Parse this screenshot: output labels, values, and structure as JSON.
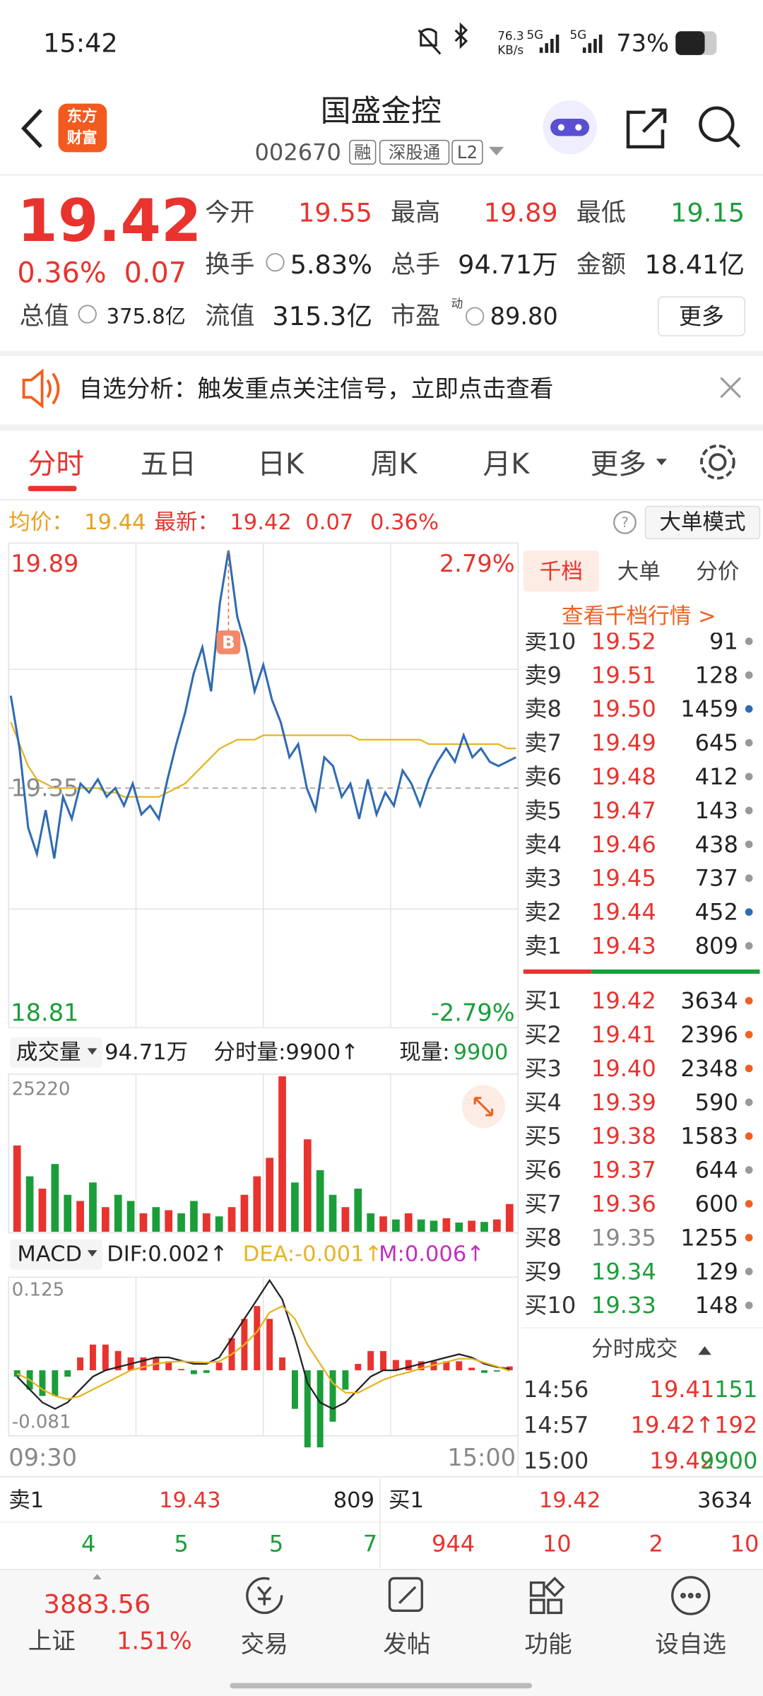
{
  "status_bar": {
    "time": "15:42",
    "net_speed": "76.3",
    "net_unit": "KB/s",
    "signal1": "5G",
    "signal2": "5G",
    "battery": "73%"
  },
  "header": {
    "logo": [
      "东方",
      "财富"
    ],
    "name": "国盛金控",
    "code": "002670",
    "tags": [
      "融",
      "深股通",
      "L2"
    ]
  },
  "quote": {
    "price": "19.42",
    "change_pct": "0.36%",
    "change": "0.07",
    "fields": [
      {
        "label": "今开",
        "value": "19.55"
      },
      {
        "label": "最高",
        "value": "19.89"
      },
      {
        "label": "最低",
        "value": "19.15"
      },
      {
        "label": "换手",
        "value": "5.83%"
      },
      {
        "label": "总手",
        "value": "94.71万"
      },
      {
        "label": "金额",
        "value": "18.41亿"
      },
      {
        "label": "总值",
        "value": "375.8亿"
      },
      {
        "label": "流值",
        "value": "315.3亿"
      },
      {
        "label": "市盈",
        "sup": "动",
        "value": "89.80"
      }
    ],
    "more": "更多"
  },
  "banner": "自选分析：触发重点关注信号，立即点击查看",
  "tabs": [
    "分时",
    "五日",
    "日K",
    "周K",
    "月K",
    "更多"
  ],
  "info_bar": {
    "avg_label": "均价：",
    "avg": "19.44",
    "last_label": "最新：",
    "last": "19.42",
    "change": "0.07",
    "change_pct": "0.36%",
    "mode": "大单模式"
  },
  "chart_data": [
    {
      "type": "line",
      "annotation": "B",
      "ylim": [
        18.81,
        19.89
      ],
      "yticks": [
        18.81,
        19.35,
        19.89
      ],
      "y2lim": [
        -2.79,
        2.79
      ],
      "y2ticks": [
        {
          "value": -2.79,
          "label": "-2.79%"
        },
        {
          "value": 2.79,
          "label": "2.79%"
        }
      ],
      "series": [
        {
          "name": "最新",
          "color": "#2f6bb3",
          "values": [
            19.56,
            19.44,
            19.26,
            19.2,
            19.3,
            19.19,
            19.33,
            19.28,
            19.36,
            19.34,
            19.37,
            19.33,
            19.35,
            19.31,
            19.36,
            19.29,
            19.31,
            19.28,
            19.37,
            19.45,
            19.52,
            19.61,
            19.67,
            19.57,
            19.77,
            19.89,
            19.74,
            19.67,
            19.57,
            19.63,
            19.55,
            19.5,
            19.42,
            19.45,
            19.35,
            19.3,
            19.42,
            19.4,
            19.33,
            19.36,
            19.28,
            19.37,
            19.29,
            19.34,
            19.31,
            19.39,
            19.36,
            19.31,
            19.37,
            19.41,
            19.44,
            19.41,
            19.47,
            19.42,
            19.44,
            19.41,
            19.4,
            19.41,
            19.42
          ]
        },
        {
          "name": "均价",
          "color": "#e6b422",
          "values": [
            19.5,
            19.45,
            19.4,
            19.37,
            19.36,
            19.35,
            19.35,
            19.35,
            19.35,
            19.35,
            19.35,
            19.34,
            19.34,
            19.33,
            19.33,
            19.33,
            19.33,
            19.33,
            19.34,
            19.35,
            19.36,
            19.38,
            19.4,
            19.42,
            19.44,
            19.45,
            19.46,
            19.46,
            19.46,
            19.47,
            19.47,
            19.47,
            19.47,
            19.47,
            19.47,
            19.47,
            19.47,
            19.47,
            19.47,
            19.47,
            19.46,
            19.46,
            19.46,
            19.46,
            19.46,
            19.46,
            19.46,
            19.46,
            19.45,
            19.45,
            19.45,
            19.45,
            19.45,
            19.45,
            19.45,
            19.45,
            19.45,
            19.44,
            19.44
          ]
        }
      ]
    },
    {
      "type": "bar",
      "label": "成交量",
      "total": "94.71万",
      "last_bar": "分时量:9900↑",
      "now_label": "现量:",
      "now": "9900",
      "ylim": [
        0,
        25220
      ],
      "yticks": [
        25220
      ],
      "values": [
        14000,
        9000,
        7000,
        11000,
        6000,
        5000,
        8000,
        4000,
        6000,
        5000,
        3000,
        4000,
        3500,
        3000,
        5000,
        3000,
        2500,
        4000,
        6000,
        9000,
        12000,
        25220,
        8000,
        15000,
        10000,
        6000,
        4000,
        7000,
        3000,
        2500,
        2000,
        3000,
        2000,
        1800,
        2200,
        1500,
        1800,
        1600,
        2000,
        4500
      ],
      "colors": [
        "#e8332e",
        "#1a9e3a",
        "#e8332e",
        "#1a9e3a",
        "#1a9e3a",
        "#e8332e",
        "#1a9e3a",
        "#e8332e",
        "#1a9e3a",
        "#1a9e3a",
        "#e8332e",
        "#1a9e3a",
        "#e8332e",
        "#1a9e3a",
        "#1a9e3a",
        "#e8332e",
        "#1a9e3a",
        "#e8332e",
        "#e8332e",
        "#e8332e",
        "#e8332e",
        "#e8332e",
        "#1a9e3a",
        "#e8332e",
        "#1a9e3a",
        "#1a9e3a",
        "#e8332e",
        "#1a9e3a",
        "#1a9e3a",
        "#e8332e",
        "#1a9e3a",
        "#e8332e",
        "#1a9e3a",
        "#1a9e3a",
        "#e8332e",
        "#1a9e3a",
        "#e8332e",
        "#1a9e3a",
        "#e8332e",
        "#e8332e"
      ]
    },
    {
      "type": "macd",
      "label": "MACD",
      "xlabels": [
        "09:30",
        "15:00"
      ],
      "ylim": [
        -0.102,
        0.145
      ],
      "yticks": [
        -0.081,
        0.125
      ],
      "up_color": "#e8332e",
      "down_color": "#1a9e3a",
      "series": [
        {
          "name": "DIF:0.002↑",
          "color": "#222222",
          "values": [
            -0.01,
            -0.03,
            -0.05,
            -0.06,
            -0.05,
            -0.03,
            -0.01,
            0.0,
            0.005,
            0.01,
            0.015,
            0.02,
            0.02,
            0.015,
            0.01,
            0.01,
            0.02,
            0.05,
            0.08,
            0.11,
            0.14,
            0.11,
            0.05,
            -0.02,
            -0.05,
            -0.06,
            -0.05,
            -0.03,
            -0.01,
            0.0,
            0.0,
            0.005,
            0.01,
            0.015,
            0.02,
            0.025,
            0.02,
            0.01,
            0.005,
            0.002
          ]
        },
        {
          "name": "DEA:-0.001↑",
          "color": "#e6b422",
          "values": [
            -0.005,
            -0.015,
            -0.03,
            -0.04,
            -0.045,
            -0.04,
            -0.03,
            -0.02,
            -0.01,
            0.0,
            0.005,
            0.01,
            0.013,
            0.014,
            0.013,
            0.012,
            0.014,
            0.025,
            0.04,
            0.06,
            0.09,
            0.1,
            0.08,
            0.04,
            0.01,
            -0.02,
            -0.035,
            -0.035,
            -0.025,
            -0.015,
            -0.008,
            -0.003,
            0.003,
            0.008,
            0.013,
            0.018,
            0.018,
            0.012,
            0.006,
            -0.001
          ]
        },
        {
          "name": "M:0.006↑",
          "color": "#c030c0",
          "values": [
            -0.01,
            -0.03,
            -0.04,
            -0.04,
            -0.01,
            0.02,
            0.04,
            0.04,
            0.03,
            0.02,
            0.02,
            0.02,
            0.014,
            0.002,
            -0.006,
            -0.004,
            0.012,
            0.05,
            0.08,
            0.1,
            0.08,
            0.02,
            -0.06,
            -0.12,
            -0.12,
            -0.08,
            -0.03,
            0.01,
            0.03,
            0.03,
            0.016,
            0.016,
            0.014,
            0.014,
            0.014,
            0.014,
            0.004,
            -0.004,
            -0.002,
            0.006
          ]
        }
      ]
    }
  ],
  "order_book": {
    "tabs": [
      "千档",
      "大单",
      "分价"
    ],
    "link": "查看千档行情 >",
    "asks": [
      {
        "label": "卖10",
        "price": "19.52",
        "volume": "91",
        "dot": "#999999"
      },
      {
        "label": "卖9",
        "price": "19.51",
        "volume": "128",
        "dot": "#999999"
      },
      {
        "label": "卖8",
        "price": "19.50",
        "volume": "1459",
        "dot": "#2f6bb3"
      },
      {
        "label": "卖7",
        "price": "19.49",
        "volume": "645",
        "dot": "#999999"
      },
      {
        "label": "卖6",
        "price": "19.48",
        "volume": "412",
        "dot": "#999999"
      },
      {
        "label": "卖5",
        "price": "19.47",
        "volume": "143",
        "dot": "#999999"
      },
      {
        "label": "卖4",
        "price": "19.46",
        "volume": "438",
        "dot": "#999999"
      },
      {
        "label": "卖3",
        "price": "19.45",
        "volume": "737",
        "dot": "#999999"
      },
      {
        "label": "卖2",
        "price": "19.44",
        "volume": "452",
        "dot": "#2f6bb3"
      },
      {
        "label": "卖1",
        "price": "19.43",
        "volume": "809",
        "dot": "#999999"
      }
    ],
    "bids": [
      {
        "label": "买1",
        "price": "19.42",
        "volume": "3634",
        "dot": "#f06020"
      },
      {
        "label": "买2",
        "price": "19.41",
        "volume": "2396",
        "dot": "#f06020"
      },
      {
        "label": "买3",
        "price": "19.40",
        "volume": "2348",
        "dot": "#f06020"
      },
      {
        "label": "买4",
        "price": "19.39",
        "volume": "590",
        "dot": "#999999"
      },
      {
        "label": "买5",
        "price": "19.38",
        "volume": "1583",
        "dot": "#f06020"
      },
      {
        "label": "买6",
        "price": "19.37",
        "volume": "644",
        "dot": "#999999"
      },
      {
        "label": "买7",
        "price": "19.36",
        "volume": "600",
        "dot": "#f06020"
      },
      {
        "label": "买8",
        "price": "19.35",
        "volume": "1255",
        "dot": "#f06020"
      },
      {
        "label": "买9",
        "price": "19.34",
        "volume": "129",
        "dot": "#999999"
      },
      {
        "label": "买10",
        "price": "19.33",
        "volume": "148",
        "dot": "#999999"
      }
    ]
  },
  "trades": {
    "title": "分时成交",
    "rows": [
      {
        "time": "14:56",
        "price": "19.41",
        "volume": "151",
        "color": "#1a9e3a"
      },
      {
        "time": "14:57",
        "price": "19.42↑",
        "volume": "192",
        "color": "#e8332e"
      },
      {
        "time": "15:00",
        "price": "19.42",
        "volume": "9900",
        "color": "#1a9e3a"
      }
    ]
  },
  "level1": {
    "ask_label": "卖1",
    "ask_price": "19.43",
    "ask_volume": "809",
    "bid_label": "买1",
    "bid_price": "19.42",
    "bid_volume": "3634",
    "counts": [
      "4",
      "5",
      "5",
      "7",
      "944",
      "10",
      "2",
      "10"
    ]
  },
  "bottom_nav": {
    "index_value": "3883.56",
    "index_name": "上证",
    "index_pct": "1.51%",
    "items": [
      "交易",
      "发帖",
      "功能",
      "设自选"
    ]
  }
}
